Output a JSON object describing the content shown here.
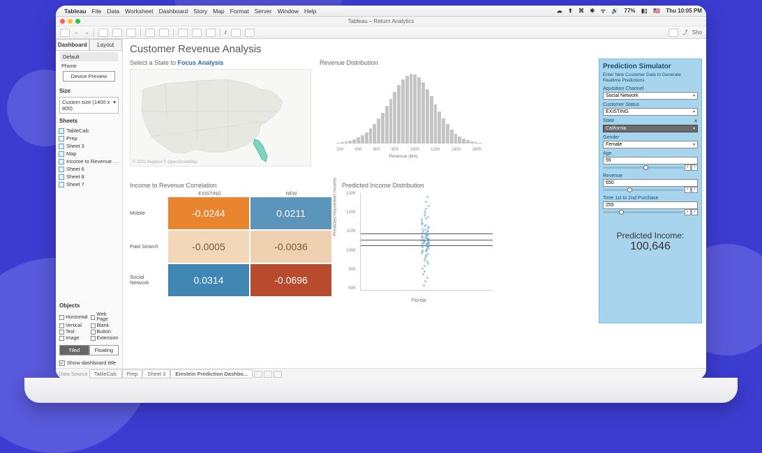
{
  "mac_menu": {
    "app": "Tableau",
    "items": [
      "File",
      "Data",
      "Worksheet",
      "Dashboard",
      "Story",
      "Map",
      "Format",
      "Server",
      "Window",
      "Help"
    ],
    "status": {
      "battery": "77%",
      "clock": "Thu 10:05 PM"
    }
  },
  "window_title": "Tableau – Return Analytics",
  "toolbar_right": "Sho",
  "sidebar": {
    "tabs": [
      "Dashboard",
      "Layout"
    ],
    "active_tab": 0,
    "device_default": "Default",
    "device_phone": "Phone",
    "device_preview_btn": "Device Preview",
    "size_label": "Size",
    "size_value": "Custom size (1400 x 800)",
    "sheets_label": "Sheets",
    "sheets": [
      "TableCalc",
      "Prep",
      "Sheet 3",
      "Map",
      "Income to Revenue …",
      "Sheet 6",
      "Sheet 8",
      "Sheet 7"
    ],
    "objects_label": "Objects",
    "objects": [
      "Horizontal",
      "Web Page",
      "Vertical",
      "Blank",
      "Text",
      "Button",
      "Image",
      "Extension"
    ],
    "tiled": "Tiled",
    "floating": "Floating",
    "show_title": "Show dashboard title"
  },
  "dashboard_title": "Customer Revenue Analysis",
  "map": {
    "title_a": "Select a State to ",
    "title_b": "Focus Analysis",
    "attribution": "© 2021 Mapbox © OpenStreetMap"
  },
  "histogram": {
    "title": "Revenue Distribution",
    "xlabel": "Revenue (bin)",
    "xticks": [
      "200",
      "400",
      "600",
      "800",
      "1000",
      "1200",
      "1400",
      "1600"
    ],
    "values": [
      1,
      2,
      3,
      4,
      6,
      9,
      12,
      16,
      22,
      28,
      36,
      44,
      54,
      64,
      74,
      84,
      92,
      97,
      100,
      99,
      95,
      88,
      78,
      68,
      56,
      46,
      36,
      28,
      20,
      14,
      10,
      7,
      5,
      3,
      2,
      1
    ],
    "bar_color": "#c4c4c4"
  },
  "correlation": {
    "title": "Income to Revenue Correlation",
    "col_headers": [
      "EXISTING",
      "NEW"
    ],
    "rows": [
      {
        "label": "Mobile",
        "cells": [
          {
            "v": "-0.0244",
            "c": "#e8852e"
          },
          {
            "v": "0.0211",
            "c": "#5b95bb"
          }
        ]
      },
      {
        "label": "Paid Search",
        "cells": [
          {
            "v": "-0.0005",
            "c": "#f2d7b8",
            "tc": "#7a5a3a"
          },
          {
            "v": "-0.0036",
            "c": "#efd0b0",
            "tc": "#7a5a3a"
          }
        ]
      },
      {
        "label": "Social Network",
        "cells": [
          {
            "v": "0.0314",
            "c": "#3f86b2"
          },
          {
            "v": "-0.0696",
            "c": "#b84b2e"
          }
        ]
      }
    ]
  },
  "scatter": {
    "title": "Predicted Income Distribution",
    "ylabel": "Predicted Household Income",
    "yticks": [
      "130K",
      "120K",
      "110K",
      "100K",
      "90K",
      "80K"
    ],
    "xlabel": "Florida",
    "ref_lines_pct": [
      42,
      48,
      54
    ],
    "points_pct": [
      3,
      8,
      12,
      15,
      18,
      20,
      22,
      24,
      25,
      26,
      28,
      30,
      31,
      32,
      33,
      34,
      35,
      36,
      37,
      38,
      38,
      39,
      40,
      40,
      41,
      42,
      42,
      43,
      43,
      44,
      44,
      45,
      45,
      46,
      46,
      47,
      47,
      48,
      48,
      48,
      49,
      49,
      50,
      50,
      50,
      51,
      51,
      52,
      52,
      53,
      53,
      54,
      54,
      55,
      55,
      56,
      57,
      58,
      58,
      59,
      60,
      61,
      62,
      63,
      64,
      66,
      68,
      70,
      72,
      74,
      77,
      80,
      83,
      86,
      90,
      94
    ],
    "dot_color": "#5b9bd5"
  },
  "predictor": {
    "title": "Prediction Simulator",
    "subtitle": "Enter New Customer Data to Generate Realtime Predictions",
    "fields": {
      "channel": {
        "label": "Aquisition Channel",
        "value": "Social Network"
      },
      "status": {
        "label": "Customer Status",
        "value": "EXISTING"
      },
      "state": {
        "label": "State",
        "value": "California",
        "dark": true
      },
      "gender": {
        "label": "Gender",
        "value": "Female"
      },
      "age": {
        "label": "Age",
        "value": "55",
        "slider_pct": 50
      },
      "revenue": {
        "label": "Revenue",
        "value": "650",
        "slider_pct": 30
      },
      "time": {
        "label": "Time 1st to 2nd Purchase",
        "value": "255",
        "slider_pct": 20
      }
    },
    "result_label": "Predicted Income:",
    "result_value": "100,646"
  },
  "bottom_tabs": {
    "data_source": "Data Source",
    "tabs": [
      "TableCalc",
      "Prep",
      "Sheet 3",
      "Einstein Prediction Dashbo..."
    ],
    "active": 3
  }
}
